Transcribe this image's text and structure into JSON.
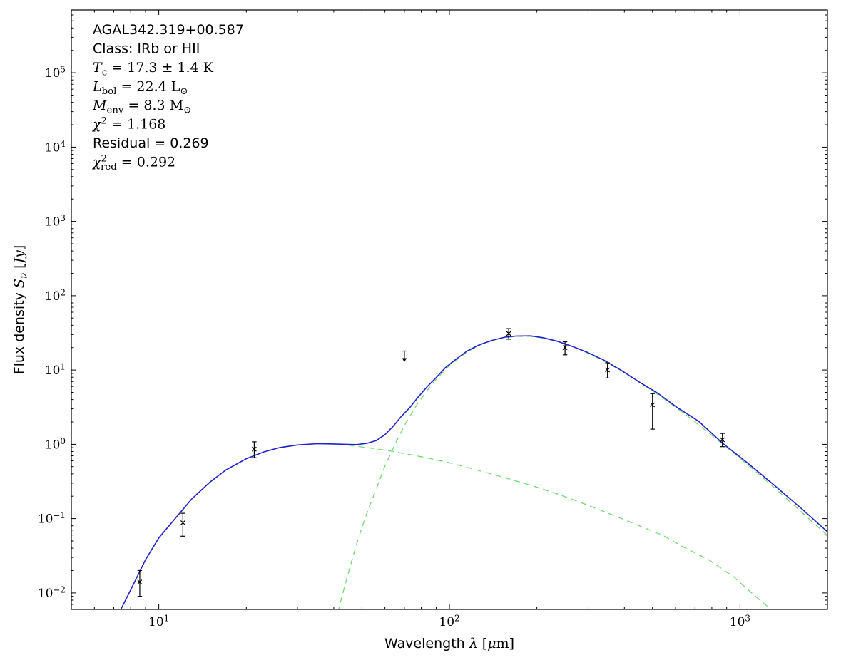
{
  "figure": {
    "background": "#ffffff",
    "frame_color": "#000000"
  },
  "chart_data": {
    "type": "line",
    "title": "",
    "xscale": "log",
    "yscale": "log",
    "xlim": [
      5,
      2000
    ],
    "ylim": [
      0.006,
      700000
    ],
    "xlabel": "Wavelength λ [μm]",
    "ylabel": "Flux density Sν [Jy]",
    "xlabel_parts": [
      [
        "Wavelength ",
        ""
      ],
      [
        "λ",
        "i"
      ],
      [
        " [",
        "rm"
      ],
      [
        "μ",
        "i"
      ],
      [
        "m",
        "rm"
      ],
      [
        "]",
        "rm"
      ]
    ],
    "ylabel_parts": [
      [
        "Flux density ",
        ""
      ],
      [
        "S",
        "i"
      ],
      [
        "ν",
        "isub"
      ],
      [
        " [",
        "rm"
      ],
      [
        "J",
        "i"
      ],
      [
        "y",
        "i"
      ],
      [
        "]",
        "rm"
      ]
    ],
    "x_major_ticks": [
      10,
      100,
      1000
    ],
    "y_major_ticks": [
      0.01,
      0.1,
      1,
      10,
      100,
      1000,
      10000,
      100000
    ],
    "grid": false,
    "legend": null,
    "annotation": {
      "lines": [
        {
          "font": "sans",
          "parts": [
            [
              "AGAL342.319+00.587",
              ""
            ]
          ]
        },
        {
          "font": "sans",
          "parts": [
            [
              "Class: IRb or HII",
              ""
            ]
          ]
        },
        {
          "font": "serif",
          "parts": [
            [
              "T",
              "i"
            ],
            [
              "c",
              "sub"
            ],
            [
              " = 17.3 ± 1.4 K",
              ""
            ]
          ]
        },
        {
          "font": "serif",
          "parts": [
            [
              "L",
              "i"
            ],
            [
              "bol",
              "sub"
            ],
            [
              " = 22.4 ",
              ""
            ],
            [
              "L",
              ""
            ],
            [
              "⊙",
              "sub"
            ]
          ]
        },
        {
          "font": "serif",
          "parts": [
            [
              "M",
              "i"
            ],
            [
              "env",
              "sub"
            ],
            [
              " = 8.3 ",
              ""
            ],
            [
              "M",
              ""
            ],
            [
              "⊙",
              "sub"
            ]
          ]
        },
        {
          "font": "serif",
          "parts": [
            [
              "χ",
              "i"
            ],
            [
              "2",
              "sup"
            ],
            [
              " = 1.168",
              ""
            ]
          ]
        },
        {
          "font": "sans",
          "parts": [
            [
              "Residual = 0.269",
              ""
            ]
          ]
        },
        {
          "font": "serif",
          "parts": [
            [
              "χ",
              "i"
            ],
            [
              "2",
              "sup"
            ],
            [
              "red",
              "sub",
              -9
            ],
            [
              " = 0.292",
              ""
            ]
          ]
        }
      ]
    },
    "series": [
      {
        "name": "total-fit",
        "style": "solid",
        "color": "#2222cc",
        "width": 1.6,
        "x": [
          7.0,
          7.4,
          8,
          9,
          10,
          11.5,
          13,
          15,
          17,
          20,
          23,
          26,
          30,
          35,
          40,
          44,
          48,
          52,
          56,
          60,
          64,
          68,
          73,
          78,
          84,
          90,
          97,
          105,
          115,
          127,
          140,
          155,
          170,
          190,
          210,
          235,
          265,
          300,
          340,
          390,
          450,
          520,
          610,
          720,
          870,
          1050,
          1300,
          1650,
          2100
        ],
        "y": [
          0.004,
          0.006,
          0.011,
          0.028,
          0.055,
          0.105,
          0.185,
          0.31,
          0.45,
          0.64,
          0.79,
          0.9,
          0.98,
          1.02,
          1.01,
          1.0,
          0.99,
          1.03,
          1.12,
          1.35,
          1.74,
          2.33,
          3.1,
          4.3,
          6.0,
          7.9,
          10.8,
          13.8,
          18.0,
          21.9,
          25.0,
          27.6,
          28.7,
          28.8,
          27.2,
          24.4,
          20.8,
          17.1,
          13.6,
          9.9,
          6.9,
          4.9,
          3.1,
          2.05,
          1.04,
          0.58,
          0.29,
          0.13,
          0.056
        ]
      },
      {
        "name": "cold-component",
        "style": "dashed",
        "color": "#72d872",
        "width": 1.3,
        "x": [
          40,
          42,
          44,
          46,
          48,
          50,
          53,
          56,
          60,
          65,
          70,
          78,
          88,
          100,
          115,
          130,
          150,
          170,
          190,
          210,
          240,
          280,
          330,
          390,
          460,
          550,
          660,
          800,
          1000,
          1250,
          1600,
          2100
        ],
        "y": [
          0.003,
          0.007,
          0.014,
          0.026,
          0.046,
          0.076,
          0.145,
          0.25,
          0.51,
          1.0,
          1.8,
          3.6,
          6.8,
          11.5,
          17.5,
          22.5,
          26.8,
          28.4,
          28.5,
          26.9,
          23.7,
          19.0,
          14.1,
          9.8,
          6.5,
          4.05,
          2.4,
          1.32,
          0.65,
          0.31,
          0.13,
          0.05
        ]
      },
      {
        "name": "warm-component",
        "style": "dashed",
        "color": "#72d872",
        "width": 1.3,
        "x": [
          7.0,
          7.4,
          8,
          9,
          10,
          11.5,
          13,
          15,
          17,
          20,
          23,
          26,
          30,
          35,
          40,
          45,
          50,
          56,
          63,
          70,
          80,
          90,
          100,
          115,
          130,
          150,
          175,
          200,
          235,
          275,
          320,
          380,
          450,
          540,
          650,
          780,
          950,
          1150,
          1350
        ],
        "y": [
          0.004,
          0.006,
          0.011,
          0.028,
          0.055,
          0.105,
          0.185,
          0.31,
          0.45,
          0.64,
          0.79,
          0.9,
          0.98,
          1.02,
          1.01,
          0.97,
          0.92,
          0.87,
          0.81,
          0.75,
          0.68,
          0.62,
          0.565,
          0.49,
          0.43,
          0.37,
          0.31,
          0.265,
          0.215,
          0.172,
          0.137,
          0.105,
          0.08,
          0.06,
          0.04,
          0.028,
          0.0165,
          0.0085,
          0.005
        ]
      }
    ],
    "data_points": {
      "color": "#000000",
      "marker": "x",
      "points": [
        {
          "x": 8.6,
          "y": 0.014,
          "err_lo": 0.005,
          "err_hi": 0.006
        },
        {
          "x": 12.1,
          "y": 0.088,
          "err_lo": 0.03,
          "err_hi": 0.03
        },
        {
          "x": 21.3,
          "y": 0.86,
          "err_lo": 0.2,
          "err_hi": 0.22
        },
        {
          "x": 160,
          "y": 31,
          "err_lo": 5,
          "err_hi": 5
        },
        {
          "x": 250,
          "y": 20,
          "err_lo": 4,
          "err_hi": 4
        },
        {
          "x": 350,
          "y": 10,
          "err_lo": 2.2,
          "err_hi": 2.5
        },
        {
          "x": 500,
          "y": 3.4,
          "err_lo": 1.8,
          "err_hi": 1.4
        },
        {
          "x": 870,
          "y": 1.15,
          "err_lo": 0.22,
          "err_hi": 0.25
        }
      ]
    },
    "upper_limits": [
      {
        "x": 70,
        "y": 18
      }
    ]
  }
}
